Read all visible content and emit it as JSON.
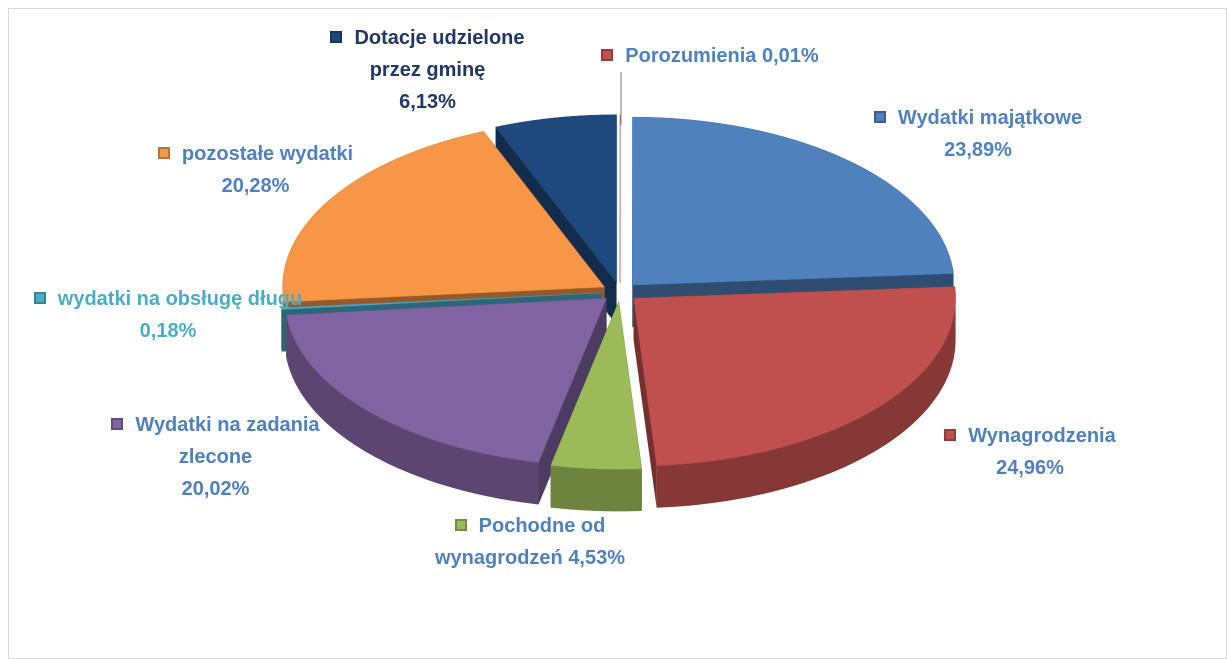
{
  "chart_data": {
    "type": "pie",
    "categories": [
      "Porozumienia",
      "Wydatki majątkowe",
      "Wynagrodzenia",
      "Pochodne od wynagrodzeń",
      "Wydatki na zadania zlecone",
      "wydatki na obsługę długu",
      "pozostałe wydatki",
      "Dotacje udzielone przez gminę"
    ],
    "values": [
      0.01,
      23.89,
      24.96,
      4.53,
      20.02,
      0.18,
      20.28,
      6.13
    ],
    "value_labels": [
      "0,01%",
      "23,89%",
      "24,96%",
      "4,53%",
      "20,02%",
      "0,18%",
      "20,28%",
      "6,13%"
    ],
    "colors": [
      "#c0504d",
      "#4f81bd",
      "#c0504d",
      "#9bbb59",
      "#8064a2",
      "#4bacc6",
      "#f79646",
      "#1f497d"
    ]
  }
}
